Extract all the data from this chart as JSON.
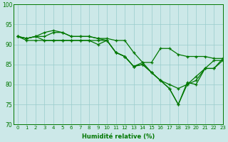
{
  "xlabel": "Humidité relative (%)",
  "xlim": [
    -0.5,
    23
  ],
  "ylim": [
    70,
    100
  ],
  "yticks": [
    70,
    75,
    80,
    85,
    90,
    95,
    100
  ],
  "xticks": [
    0,
    1,
    2,
    3,
    4,
    5,
    6,
    7,
    8,
    9,
    10,
    11,
    12,
    13,
    14,
    15,
    16,
    17,
    18,
    19,
    20,
    21,
    22,
    23
  ],
  "bg_color": "#cce8e8",
  "grid_color": "#99cccc",
  "line_color": "#007700",
  "series": [
    [
      92,
      91.5,
      92,
      93,
      93.5,
      93,
      92,
      92,
      92,
      91.5,
      91.5,
      91,
      91,
      88,
      85.5,
      85.5,
      89,
      89,
      87.5,
      87,
      87,
      87,
      86.5,
      86.5
    ],
    [
      92,
      91.5,
      92,
      92,
      93,
      93,
      92,
      92,
      92,
      91.5,
      91,
      88,
      87,
      84.5,
      85.5,
      83,
      81,
      80,
      79,
      80,
      82,
      84,
      86,
      86
    ],
    [
      92,
      91.5,
      92,
      91,
      91,
      91,
      91,
      91,
      91,
      91,
      91,
      88,
      87,
      84.5,
      85,
      83,
      81,
      79,
      75,
      80.5,
      80,
      84,
      84,
      86.5
    ],
    [
      92,
      91,
      91,
      91,
      91,
      91,
      91,
      91,
      91,
      90,
      91,
      88,
      87,
      84.5,
      85,
      83,
      81,
      79,
      75,
      80,
      81,
      84,
      84,
      86
    ]
  ]
}
